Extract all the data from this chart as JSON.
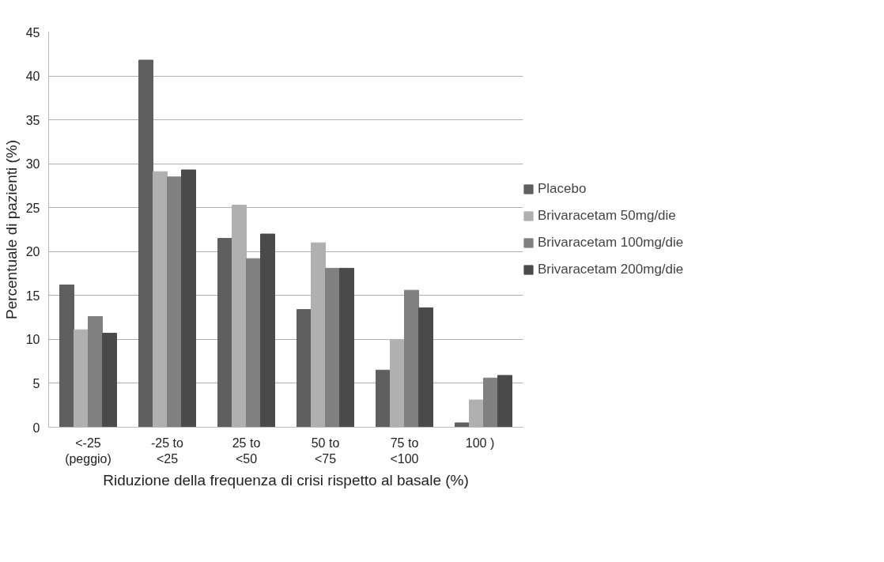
{
  "chart_data": {
    "type": "bar",
    "xlabel": "Riduzione della frequenza di crisi rispetto al basale (%)",
    "ylabel": "Percentuale di pazienti (%)",
    "categories": [
      "<-25\n(peggio)",
      "-25 to\n<25",
      "25 to\n<50",
      "50 to\n<75",
      "75 to\n<100",
      "100   )"
    ],
    "series": [
      {
        "name": "Placebo",
        "color": "#5f5f5f",
        "values": [
          16.2,
          41.8,
          21.5,
          13.4,
          6.5,
          0.5
        ]
      },
      {
        "name": "Brivaracetam 50mg/die",
        "color": "#b0b0b0",
        "values": [
          11.1,
          29.1,
          25.3,
          21.0,
          10.0,
          3.1
        ]
      },
      {
        "name": "Brivaracetam 100mg/die",
        "color": "#808080",
        "values": [
          12.6,
          28.5,
          19.2,
          18.1,
          15.6,
          5.6
        ]
      },
      {
        "name": "Brivaracetam 200mg/die",
        "color": "#4a4a4a",
        "values": [
          10.7,
          29.3,
          22.0,
          18.1,
          13.6,
          5.9
        ]
      }
    ],
    "ylim": [
      0,
      45
    ],
    "yticks": [
      0,
      5,
      10,
      15,
      20,
      25,
      30,
      35,
      40,
      45
    ],
    "grid": "y",
    "legend": "right"
  }
}
